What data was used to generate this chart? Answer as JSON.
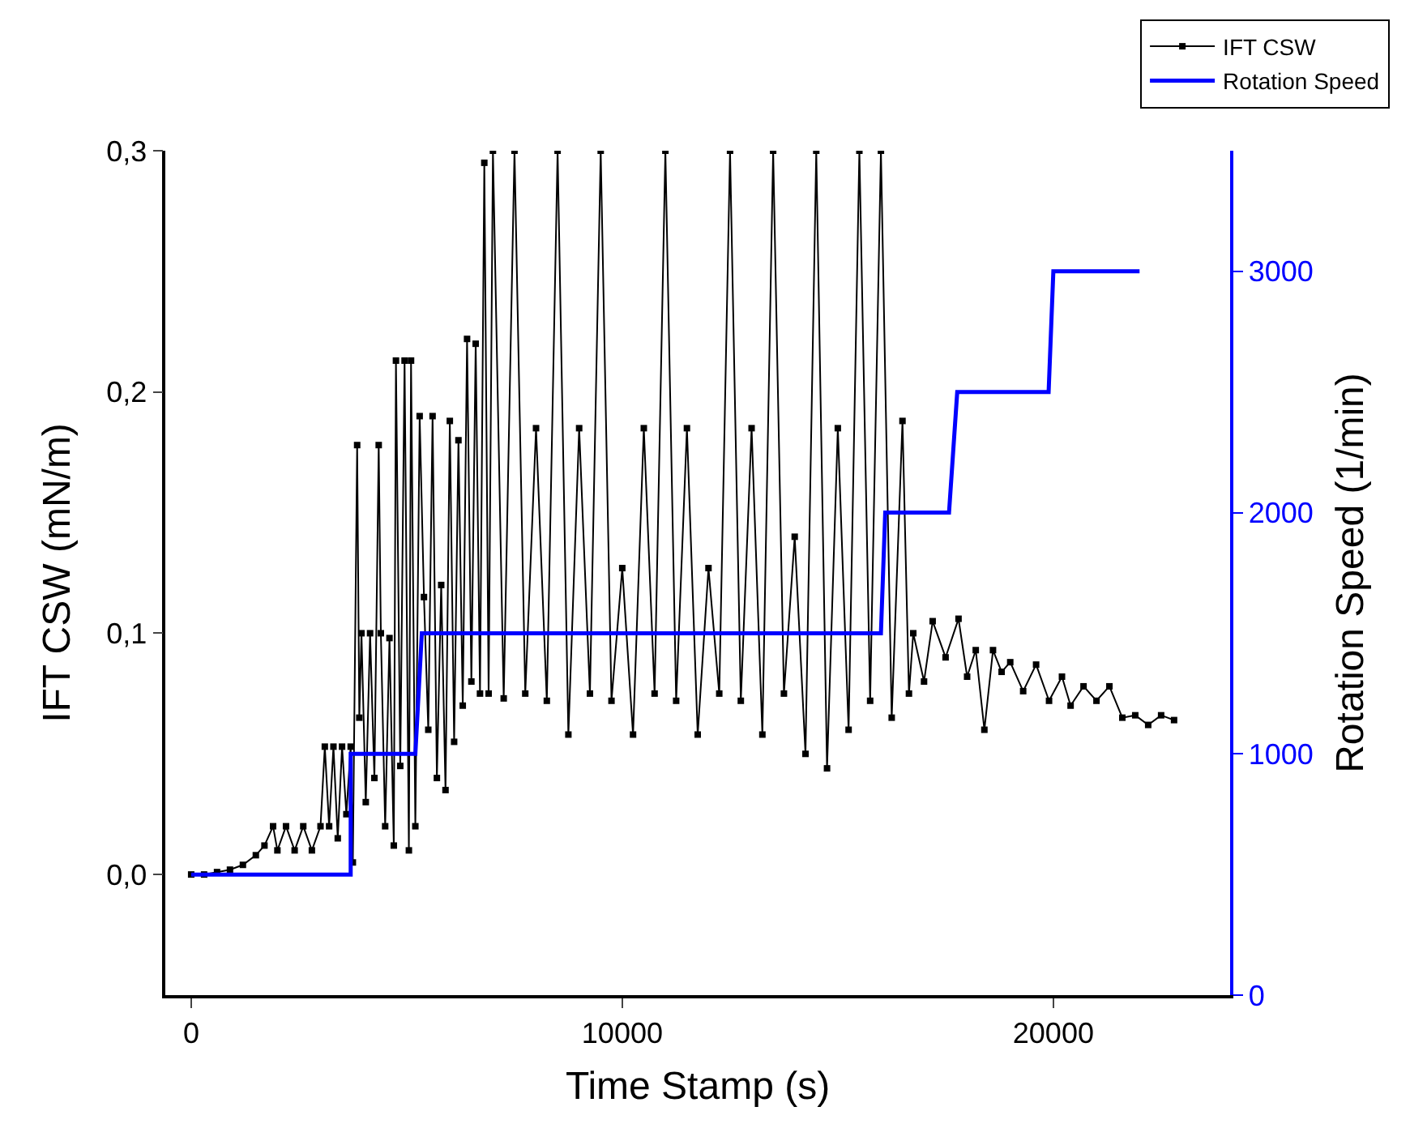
{
  "chart_data": {
    "type": "line",
    "xlabel": "Time Stamp (s)",
    "ylabel": "IFT CSW (mN/m)",
    "y2label": "Rotation Speed (1/min)",
    "xlim": [
      -600,
      24100
    ],
    "xticks": [
      0,
      10000,
      20000
    ],
    "ylim": [
      -0.05,
      0.3
    ],
    "yticks": [
      {
        "value": 0,
        "label": "0,0"
      },
      {
        "value": 0.1,
        "label": "0,1"
      },
      {
        "value": 0.2,
        "label": "0,2"
      },
      {
        "value": 0.3,
        "label": "0,3"
      }
    ],
    "y2lim": [
      0,
      3500
    ],
    "y2ticks": [
      0,
      1000,
      2000,
      3000
    ],
    "legend": "top right",
    "series": [
      {
        "name": "IFT CSW",
        "color": "#000000",
        "marker": "square",
        "x": [
          0,
          300,
          600,
          900,
          1200,
          1500,
          1700,
          1900,
          2000,
          2200,
          2400,
          2600,
          2800,
          3000,
          3100,
          3200,
          3300,
          3400,
          3500,
          3600,
          3700,
          3750,
          3850,
          3900,
          3950,
          4050,
          4150,
          4250,
          4350,
          4400,
          4500,
          4600,
          4700,
          4750,
          4850,
          4950,
          5050,
          5100,
          5200,
          5300,
          5400,
          5500,
          5600,
          5700,
          5800,
          5900,
          6000,
          6100,
          6200,
          6300,
          6400,
          6500,
          6600,
          6700,
          6800,
          6900,
          7000,
          7250,
          7500,
          7750,
          8000,
          8250,
          8500,
          8750,
          9000,
          9250,
          9500,
          9750,
          10000,
          10250,
          10500,
          10750,
          11000,
          11250,
          11500,
          11750,
          12000,
          12250,
          12500,
          12750,
          13000,
          13250,
          13500,
          13750,
          14000,
          14250,
          14500,
          14750,
          15000,
          15250,
          15500,
          15750,
          16000,
          16250,
          16500,
          16650,
          16750,
          17000,
          17200,
          17500,
          17800,
          18000,
          18200,
          18400,
          18600,
          18800,
          19000,
          19300,
          19600,
          19900,
          20200,
          20400,
          20700,
          21000,
          21300,
          21600,
          21900,
          22200,
          22500,
          22800
        ],
        "values": [
          0,
          0,
          0.001,
          0.002,
          0.004,
          0.008,
          0.012,
          0.02,
          0.01,
          0.02,
          0.01,
          0.02,
          0.01,
          0.02,
          0.053,
          0.02,
          0.053,
          0.015,
          0.053,
          0.025,
          0.053,
          0.005,
          0.178,
          0.065,
          0.1,
          0.03,
          0.1,
          0.04,
          0.178,
          0.1,
          0.02,
          0.098,
          0.012,
          0.213,
          0.045,
          0.213,
          0.01,
          0.213,
          0.02,
          0.19,
          0.115,
          0.06,
          0.19,
          0.04,
          0.12,
          0.035,
          0.188,
          0.055,
          0.18,
          0.07,
          0.222,
          0.08,
          0.22,
          0.075,
          0.295,
          0.075,
          0.3,
          0.073,
          0.3,
          0.075,
          0.185,
          0.072,
          0.3,
          0.058,
          0.185,
          0.075,
          0.3,
          0.072,
          0.127,
          0.058,
          0.185,
          0.075,
          0.3,
          0.072,
          0.185,
          0.058,
          0.127,
          0.075,
          0.3,
          0.072,
          0.185,
          0.058,
          0.3,
          0.075,
          0.14,
          0.05,
          0.3,
          0.044,
          0.185,
          0.06,
          0.3,
          0.072,
          0.3,
          0.065,
          0.188,
          0.075,
          0.1,
          0.08,
          0.105,
          0.09,
          0.106,
          0.082,
          0.093,
          0.06,
          0.093,
          0.084,
          0.088,
          0.076,
          0.087,
          0.072,
          0.082,
          0.07,
          0.078,
          0.072,
          0.078,
          0.065,
          0.066,
          0.062,
          0.066,
          0.064
        ]
      },
      {
        "name": "Rotation Speed",
        "color": "#0000ff",
        "axis": "y2",
        "marker": "none",
        "x": [
          0,
          3700,
          3700,
          5200,
          5350,
          16000,
          16100,
          17580,
          17770,
          19890,
          20000,
          22000
        ],
        "values": [
          500,
          500,
          1000,
          1000,
          1500,
          1500,
          2000,
          2000,
          2500,
          2500,
          3000,
          3000
        ]
      }
    ]
  }
}
